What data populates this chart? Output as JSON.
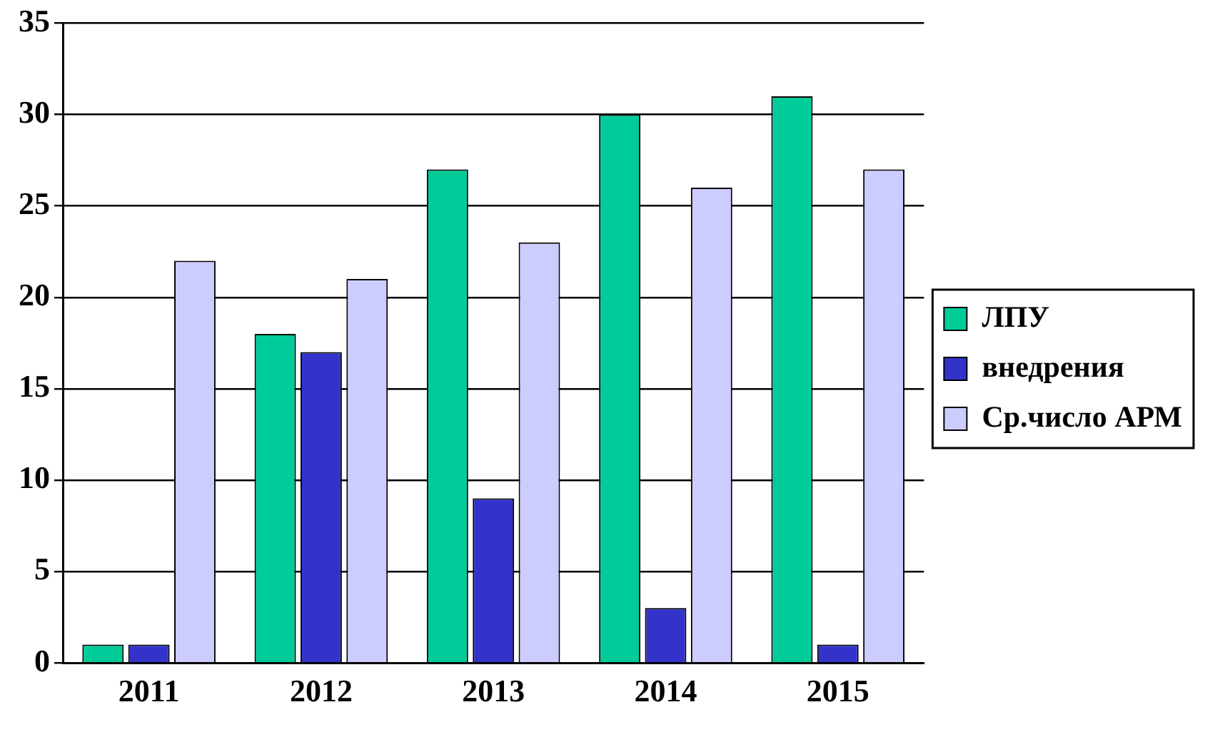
{
  "chart_data": {
    "type": "bar",
    "categories": [
      "2011",
      "2012",
      "2013",
      "2014",
      "2015"
    ],
    "series": [
      {
        "name": "ЛПУ",
        "color": "#00cc99",
        "values": [
          1,
          18,
          27,
          30,
          31
        ]
      },
      {
        "name": "внедрения",
        "color": "#3333cc",
        "values": [
          1,
          17,
          9,
          3,
          1
        ]
      },
      {
        "name": "Ср.число АРМ",
        "color": "#ccccff",
        "values": [
          22,
          21,
          23,
          26,
          27
        ]
      }
    ],
    "ylim": [
      0,
      35
    ],
    "yticks": [
      0,
      5,
      10,
      15,
      20,
      25,
      30,
      35
    ],
    "grid": "y",
    "legend": "right"
  }
}
